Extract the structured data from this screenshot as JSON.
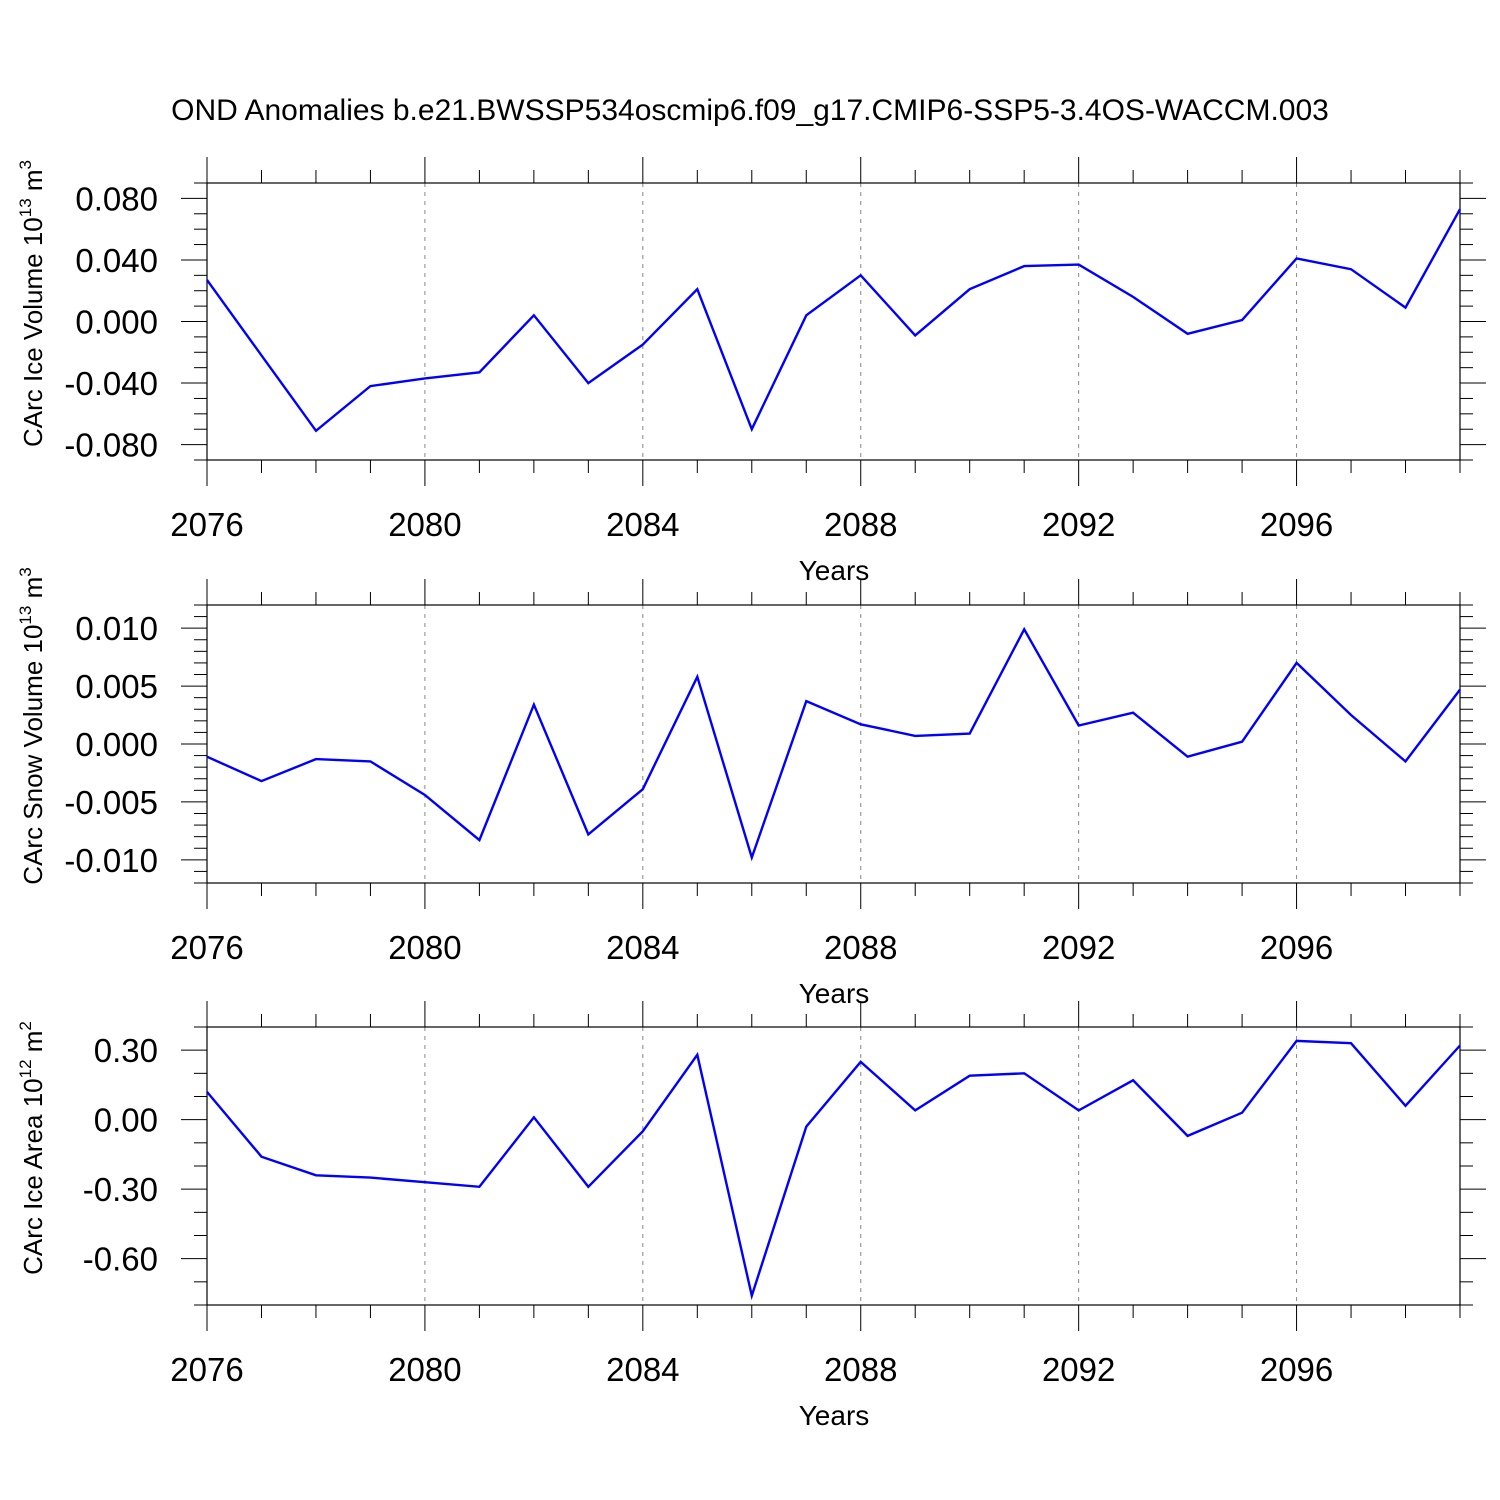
{
  "figure": {
    "title": "OND Anomalies b.e21.BWSSP534oscmip6.f09_g17.CMIP6-SSP5-3.4OS-WACCM.003",
    "line_color": "#0000ff",
    "grid_color": "#888888"
  },
  "chart_data": [
    {
      "type": "line",
      "title": "",
      "xlabel": "Years",
      "ylabel_main": "CArc Ice Volume 10",
      "ylabel_exp": "13",
      "ylabel_unit": " m",
      "ylabel_unit_exp": "3",
      "xlim": [
        2076,
        2099
      ],
      "ylim": [
        -0.09,
        0.09
      ],
      "grid": "vertical dashed at major x ticks",
      "x_ticks": [
        2076,
        2080,
        2084,
        2088,
        2092,
        2096
      ],
      "x_tick_labels": [
        "2076",
        "2080",
        "2084",
        "2088",
        "2092",
        "2096"
      ],
      "y_ticks": [
        -0.08,
        -0.04,
        0.0,
        0.04,
        0.08
      ],
      "y_tick_labels": [
        "-0.080",
        "-0.040",
        "0.000",
        "0.040",
        "0.080"
      ],
      "y_minor_step": 0.01,
      "x": [
        2076,
        2077,
        2078,
        2079,
        2080,
        2081,
        2082,
        2083,
        2084,
        2085,
        2086,
        2087,
        2088,
        2089,
        2090,
        2091,
        2092,
        2093,
        2094,
        2095,
        2096,
        2097,
        2098,
        2099
      ],
      "series": [
        {
          "values": [
            0.027,
            -0.022,
            -0.071,
            -0.042,
            -0.037,
            -0.033,
            0.004,
            -0.04,
            -0.015,
            0.021,
            -0.07,
            0.004,
            0.03,
            -0.009,
            0.021,
            0.036,
            0.037,
            0.016,
            -0.008,
            0.001,
            0.041,
            0.034,
            0.009,
            0.073
          ]
        }
      ]
    },
    {
      "type": "line",
      "title": "",
      "xlabel": "Years",
      "ylabel_main": "CArc Snow Volume 10",
      "ylabel_exp": "13",
      "ylabel_unit": " m",
      "ylabel_unit_exp": "3",
      "xlim": [
        2076,
        2099
      ],
      "ylim": [
        -0.012,
        0.012
      ],
      "grid": "vertical dashed at major x ticks",
      "x_ticks": [
        2076,
        2080,
        2084,
        2088,
        2092,
        2096
      ],
      "x_tick_labels": [
        "2076",
        "2080",
        "2084",
        "2088",
        "2092",
        "2096"
      ],
      "y_ticks": [
        -0.01,
        -0.005,
        0.0,
        0.005,
        0.01
      ],
      "y_tick_labels": [
        "-0.010",
        "-0.005",
        "0.000",
        "0.005",
        "0.010"
      ],
      "y_minor_step": 0.001,
      "x": [
        2076,
        2077,
        2078,
        2079,
        2080,
        2081,
        2082,
        2083,
        2084,
        2085,
        2086,
        2087,
        2088,
        2089,
        2090,
        2091,
        2092,
        2093,
        2094,
        2095,
        2096,
        2097,
        2098,
        2099
      ],
      "series": [
        {
          "values": [
            -0.0011,
            -0.0032,
            -0.0013,
            -0.0015,
            -0.0044,
            -0.0083,
            0.0034,
            -0.0078,
            -0.0039,
            0.0058,
            -0.0098,
            0.0037,
            0.0017,
            0.0007,
            0.0009,
            0.0099,
            0.0016,
            0.0027,
            -0.0011,
            0.0002,
            0.007,
            0.0025,
            -0.0015,
            0.0047
          ]
        }
      ]
    },
    {
      "type": "line",
      "title": "",
      "xlabel": "Years",
      "ylabel_main": "CArc Ice Area 10",
      "ylabel_exp": "12",
      "ylabel_unit": " m",
      "ylabel_unit_exp": "2",
      "xlim": [
        2076,
        2099
      ],
      "ylim": [
        -0.8,
        0.4
      ],
      "grid": "vertical dashed at major x ticks",
      "x_ticks": [
        2076,
        2080,
        2084,
        2088,
        2092,
        2096
      ],
      "x_tick_labels": [
        "2076",
        "2080",
        "2084",
        "2088",
        "2092",
        "2096"
      ],
      "y_ticks": [
        -0.6,
        -0.3,
        0.0,
        0.3
      ],
      "y_tick_labels": [
        "-0.60",
        "-0.30",
        "0.00",
        "0.30"
      ],
      "y_minor_step": 0.1,
      "x": [
        2076,
        2077,
        2078,
        2079,
        2080,
        2081,
        2082,
        2083,
        2084,
        2085,
        2086,
        2087,
        2088,
        2089,
        2090,
        2091,
        2092,
        2093,
        2094,
        2095,
        2096,
        2097,
        2098,
        2099
      ],
      "series": [
        {
          "values": [
            0.12,
            -0.16,
            -0.24,
            -0.25,
            -0.27,
            -0.29,
            0.01,
            -0.29,
            -0.05,
            0.28,
            -0.76,
            -0.03,
            0.25,
            0.04,
            0.19,
            0.2,
            0.04,
            0.17,
            -0.07,
            0.03,
            0.34,
            0.33,
            0.06,
            0.32
          ]
        }
      ]
    }
  ]
}
